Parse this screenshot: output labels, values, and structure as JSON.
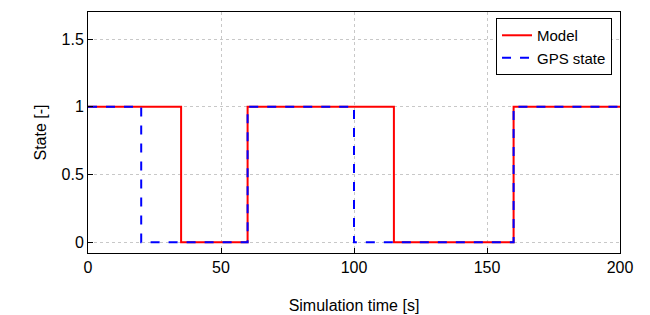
{
  "chart_data": {
    "type": "line",
    "x": [
      0,
      20,
      35,
      60,
      100,
      115,
      160,
      200
    ],
    "series": [
      {
        "name": "Model",
        "color": "#ff0000",
        "line_style": "solid",
        "values": [
          1,
          1,
          0,
          1,
          1,
          0,
          1,
          1
        ]
      },
      {
        "name": "GPS state",
        "color": "#0000ff",
        "line_style": "dashed",
        "values": [
          1,
          0,
          0,
          1,
          0,
          0,
          1,
          1
        ]
      }
    ],
    "x_label": "Simulation time [s]",
    "y_label": "State [-]",
    "xlim": [
      0,
      200
    ],
    "xticks": [
      0,
      50,
      100,
      150,
      200
    ],
    "ylim": [
      -0.08,
      1.7
    ],
    "yticks": [
      0,
      0.5,
      1,
      1.5
    ],
    "grid": true,
    "legend": "upper right"
  }
}
